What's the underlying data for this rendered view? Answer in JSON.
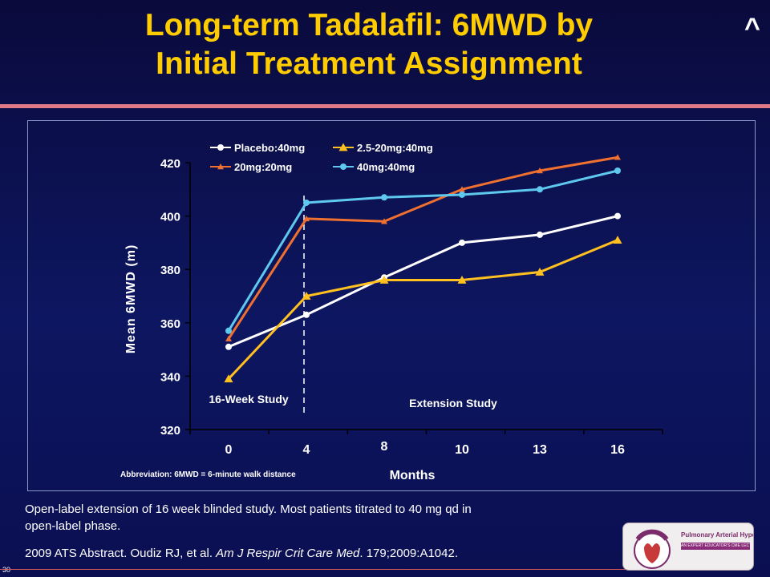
{
  "slide": {
    "title_line1": "Long-term Tadalafil: 6MWD by",
    "title_line2": "Initial Treatment Assignment",
    "caret": "^",
    "note_line1": "Open-label extension of 16 week blinded study. Most patients titrated to 40 mg qd in",
    "note_line2": "open-label phase.",
    "citation_plain": "2009 ATS Abstract. Oudiz RJ, et al. ",
    "citation_journal": "Am J Respir Crit Care Med",
    "citation_tail": ". 179;2009:A1042.",
    "page_number": "30",
    "abbreviation": "Abbreviation:  6MWD = 6-minute walk distance",
    "logo_text_main": "Pulmonary Arterial Hypertension",
    "logo_text_sub": "AN EXPERT EDUCATOR'S CME LECTURE SERIES",
    "logo_arc_text": "SIMPLY SPEAKING"
  },
  "colors": {
    "title": "#ffcc00",
    "rule": "#e07a86",
    "placebo": "#ffffff",
    "low_dose": "#ffc020",
    "d20": "#f07030",
    "d40": "#5ec8ee"
  },
  "chart_data": {
    "type": "line",
    "xlabel": "Months",
    "ylabel": "Mean 6MWD (m)",
    "x_ticks": [
      "0",
      "4",
      "8",
      "10",
      "13",
      "16"
    ],
    "ylim": [
      320,
      420
    ],
    "y_ticks": [
      320,
      340,
      360,
      380,
      400,
      420
    ],
    "legend_position": "top-left",
    "series": [
      {
        "name": "Placebo:40mg",
        "marker": "circle",
        "color": "#ffffff",
        "values": [
          351,
          363,
          377,
          390,
          393,
          400
        ]
      },
      {
        "name": "2.5-20mg:40mg",
        "marker": "triangle",
        "color": "#ffc020",
        "values": [
          339,
          370,
          376,
          376,
          379,
          391
        ]
      },
      {
        "name": "20mg:20mg",
        "marker": "triangle-small",
        "color": "#f07030",
        "values": [
          354,
          399,
          398,
          410,
          417,
          422
        ]
      },
      {
        "name": "40mg:40mg",
        "marker": "circle",
        "color": "#5ec8ee",
        "values": [
          357,
          405,
          407,
          408,
          410,
          417
        ]
      }
    ],
    "annotations": [
      {
        "text": "16-Week Study",
        "at_index": 0
      },
      {
        "text": "Extension Study",
        "at_index": 3
      }
    ],
    "divider_after_index": 1
  }
}
